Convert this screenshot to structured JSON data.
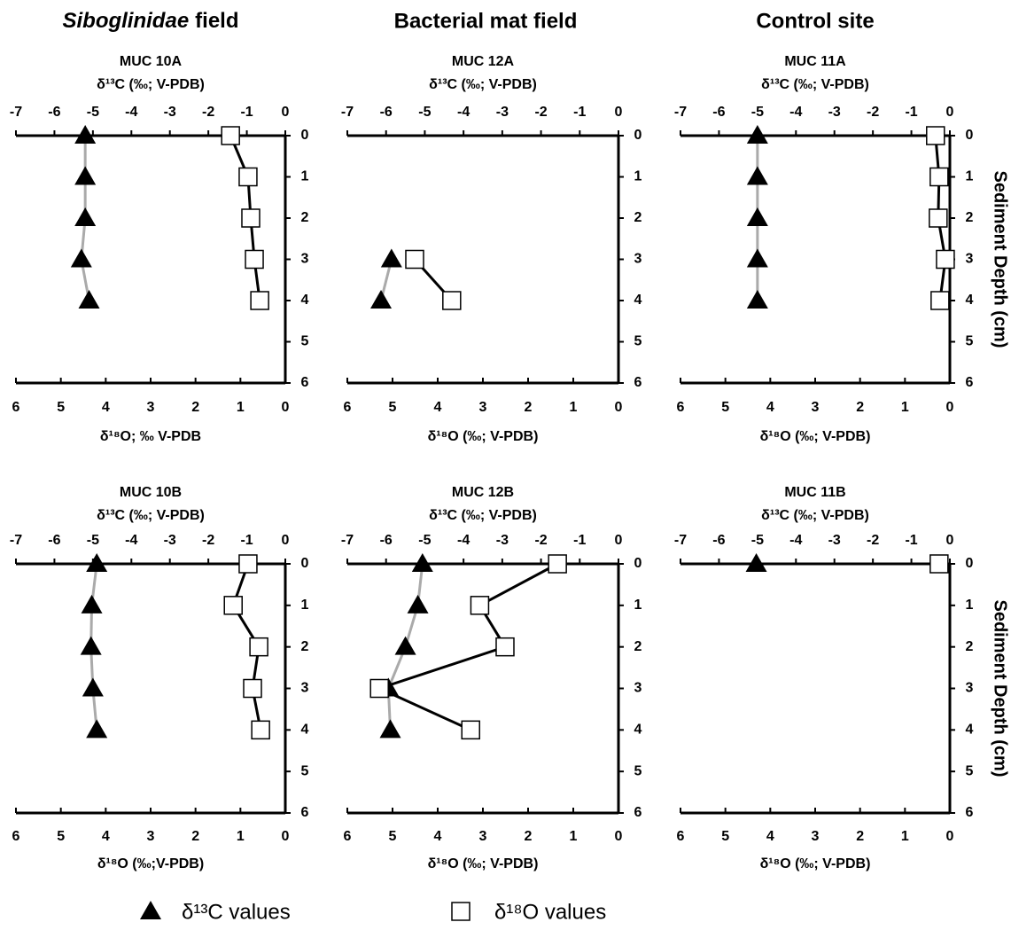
{
  "columns": [
    {
      "italic": "Siboglinidae",
      "text": "field"
    },
    {
      "text": "Bacterial mat field"
    },
    {
      "text": "Control site"
    }
  ],
  "legend": [
    {
      "label": "δ¹³C values",
      "marker": "triangle"
    },
    {
      "label": "δ¹⁸O values",
      "marker": "square"
    }
  ],
  "chart_data": [
    {
      "type": "line",
      "title": "MUC 10A",
      "xlabel": "δ¹³C  (‰; V-PDB)",
      "x2label": "δ¹⁸O; ‰ V-PDB",
      "xlim": [
        -7,
        0
      ],
      "xticks": [
        -7,
        -6,
        -5,
        -4,
        -3,
        -2,
        -1,
        0
      ],
      "x2lim": [
        6,
        0
      ],
      "x2ticks": [
        6,
        5,
        4,
        3,
        2,
        1,
        0
      ],
      "ylim": [
        0,
        6
      ],
      "yticks": [
        0,
        1,
        2,
        3,
        4,
        5,
        6
      ],
      "y": [
        0,
        1,
        2,
        3,
        4
      ],
      "series": [
        {
          "axis": "x",
          "marker": "triangle",
          "color": "#aaaaaa",
          "values": [
            -5.2,
            -5.2,
            -5.2,
            -5.3,
            -5.1
          ]
        },
        {
          "axis": "x2",
          "marker": "square",
          "color": "#000000",
          "values": [
            1.22,
            0.83,
            0.77,
            0.69,
            0.57
          ]
        }
      ]
    },
    {
      "type": "line",
      "title": "MUC 12A",
      "xlabel": "δ¹³C (‰; V-PDB)",
      "x2label": "δ¹⁸O (‰; V-PDB)",
      "xlim": [
        -7,
        0
      ],
      "xticks": [
        -7,
        -6,
        -5,
        -4,
        -3,
        -2,
        -1,
        0
      ],
      "x2lim": [
        6,
        0
      ],
      "x2ticks": [
        6,
        5,
        4,
        3,
        2,
        1,
        0
      ],
      "ylim": [
        0,
        6
      ],
      "yticks": [
        0,
        1,
        2,
        3,
        4,
        5,
        6
      ],
      "y": [
        0,
        1,
        2,
        3,
        4
      ],
      "series": [
        {
          "axis": "x",
          "marker": "triangle",
          "color": "#aaaaaa",
          "values": [
            null,
            null,
            null,
            -5.86,
            -6.13
          ]
        },
        {
          "axis": "x2",
          "marker": "square",
          "color": "#000000",
          "values": [
            null,
            null,
            null,
            4.51,
            3.69
          ]
        }
      ]
    },
    {
      "type": "line",
      "title": "MUC 11A",
      "xlabel": "δ¹³C  (‰; V-PDB)",
      "x2label": "δ¹⁸O (‰; V-PDB)",
      "ylabel": "Sediment Depth (cm)",
      "xlim": [
        -7,
        0
      ],
      "xticks": [
        -7,
        -6,
        -5,
        -4,
        -3,
        -2,
        -1,
        0
      ],
      "x2lim": [
        6,
        0
      ],
      "x2ticks": [
        6,
        5,
        4,
        3,
        2,
        1,
        0
      ],
      "ylim": [
        0,
        6
      ],
      "yticks": [
        0,
        1,
        2,
        3,
        4,
        5,
        6
      ],
      "y": [
        0,
        1,
        2,
        3,
        4
      ],
      "series": [
        {
          "axis": "x",
          "marker": "triangle",
          "color": "#aaaaaa",
          "values": [
            -5.0,
            -5.0,
            -5.0,
            -5.0,
            -5.0
          ]
        },
        {
          "axis": "x2",
          "marker": "square",
          "color": "#000000",
          "values": [
            0.32,
            0.24,
            0.26,
            0.1,
            0.22
          ]
        }
      ]
    },
    {
      "type": "line",
      "title": "MUC 10B",
      "xlabel": "δ¹³C (‰; V-PDB)",
      "x2label": "δ¹⁸O (‰;V-PDB)",
      "xlim": [
        -7,
        0
      ],
      "xticks": [
        -7,
        -6,
        -5,
        -4,
        -3,
        -2,
        -1,
        0
      ],
      "x2lim": [
        6,
        0
      ],
      "x2ticks": [
        6,
        5,
        4,
        3,
        2,
        1,
        0
      ],
      "ylim": [
        0,
        6
      ],
      "yticks": [
        0,
        1,
        2,
        3,
        4,
        5,
        6
      ],
      "y": [
        0,
        1,
        2,
        3,
        4
      ],
      "series": [
        {
          "axis": "x",
          "marker": "triangle",
          "color": "#aaaaaa",
          "values": [
            -4.9,
            -5.03,
            -5.05,
            -5.0,
            -4.9
          ]
        },
        {
          "axis": "x2",
          "marker": "square",
          "color": "#000000",
          "values": [
            0.83,
            1.16,
            0.59,
            0.73,
            0.55
          ]
        }
      ]
    },
    {
      "type": "line",
      "title": "MUC 12B",
      "xlabel": "δ¹³C (‰; V-PDB)",
      "x2label": "δ¹⁸O (‰; V-PDB)",
      "xlim": [
        -7,
        0
      ],
      "xticks": [
        -7,
        -6,
        -5,
        -4,
        -3,
        -2,
        -1,
        0
      ],
      "x2lim": [
        6,
        0
      ],
      "x2ticks": [
        6,
        5,
        4,
        3,
        2,
        1,
        0
      ],
      "ylim": [
        0,
        6
      ],
      "yticks": [
        0,
        1,
        2,
        3,
        4,
        5,
        6
      ],
      "y": [
        0,
        1,
        2,
        3,
        4
      ],
      "series": [
        {
          "axis": "x",
          "marker": "triangle",
          "color": "#aaaaaa",
          "values": [
            -5.06,
            -5.18,
            -5.5,
            -5.94,
            -5.89
          ]
        },
        {
          "axis": "x2",
          "marker": "square",
          "color": "#000000",
          "values": [
            1.35,
            3.07,
            2.51,
            5.29,
            3.27
          ]
        }
      ]
    },
    {
      "type": "line",
      "title": "MUC 11B",
      "xlabel": "δ¹³C (‰; V-PDB)",
      "x2label": "δ¹⁸O (‰; V-PDB)",
      "ylabel": "Sediment Depth (cm)",
      "xlim": [
        -7,
        0
      ],
      "xticks": [
        -7,
        -6,
        -5,
        -4,
        -3,
        -2,
        -1,
        0
      ],
      "x2lim": [
        6,
        0
      ],
      "x2ticks": [
        6,
        5,
        4,
        3,
        2,
        1,
        0
      ],
      "ylim": [
        0,
        6
      ],
      "yticks": [
        0,
        1,
        2,
        3,
        4,
        5,
        6
      ],
      "y": [
        0,
        1,
        2,
        3,
        4
      ],
      "series": [
        {
          "axis": "x",
          "marker": "triangle",
          "color": "#aaaaaa",
          "values": [
            -5.03,
            null,
            null,
            null,
            null
          ]
        },
        {
          "axis": "x2",
          "marker": "square",
          "color": "#000000",
          "values": [
            0.24,
            null,
            null,
            null,
            null
          ]
        }
      ]
    }
  ]
}
